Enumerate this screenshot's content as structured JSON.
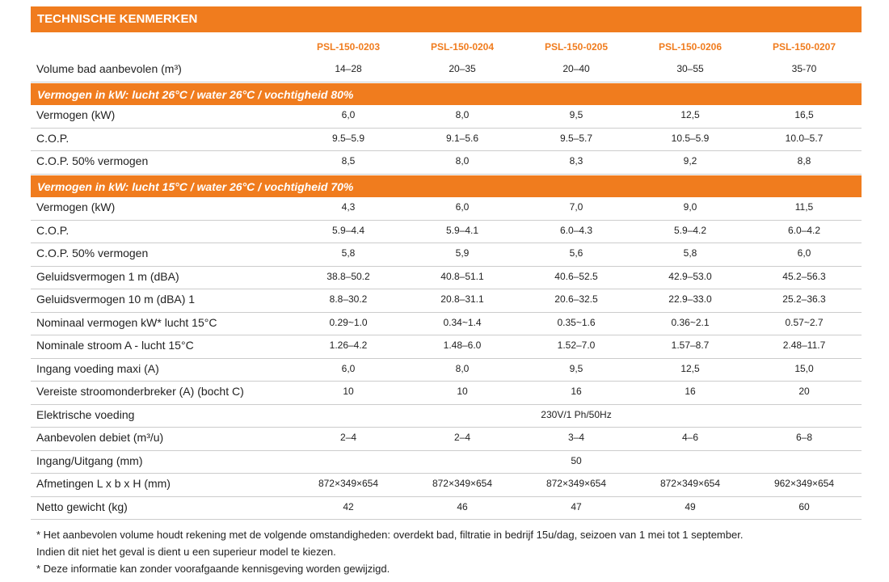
{
  "header": {
    "title": "TECHNISCHE KENMERKEN"
  },
  "table": {
    "columns": [
      "PSL-150-0203",
      "PSL-150-0204",
      "PSL-150-0205",
      "PSL-150-0206",
      "PSL-150-0207"
    ],
    "rows": [
      {
        "label": "Volume bad aanbevolen (m³)",
        "values": [
          "14–28",
          "20–35",
          "20–40",
          "30–55",
          "35-70"
        ]
      },
      {
        "section": "Vermogen in kW: lucht 26°C / water 26°C / vochtigheid 80%"
      },
      {
        "label": "Vermogen (kW)",
        "values": [
          "6,0",
          "8,0",
          "9,5",
          "12,5",
          "16,5"
        ]
      },
      {
        "label": "C.O.P.",
        "values": [
          "9.5–5.9",
          "9.1–5.6",
          "9.5–5.7",
          "10.5–5.9",
          "10.0–5.7"
        ]
      },
      {
        "label": "C.O.P. 50% vermogen",
        "values": [
          "8,5",
          "8,0",
          "8,3",
          "9,2",
          "8,8"
        ]
      },
      {
        "section": "Vermogen in kW: lucht 15°C / water 26°C / vochtigheid 70%"
      },
      {
        "label": "Vermogen (kW)",
        "values": [
          "4,3",
          "6,0",
          "7,0",
          "9,0",
          "11,5"
        ]
      },
      {
        "label": "C.O.P.",
        "values": [
          "5.9–4.4",
          "5.9–4.1",
          "6.0–4.3",
          "5.9–4.2",
          "6.0–4.2"
        ]
      },
      {
        "label": "C.O.P. 50% vermogen",
        "values": [
          "5,8",
          "5,9",
          "5,6",
          "5,8",
          "6,0"
        ]
      },
      {
        "label": "Geluidsvermogen 1 m (dBA)",
        "values": [
          "38.8–50.2",
          "40.8–51.1",
          "40.6–52.5",
          "42.9–53.0",
          "45.2–56.3"
        ]
      },
      {
        "label": "Geluidsvermogen 10 m (dBA) 1",
        "values": [
          "8.8–30.2",
          "20.8–31.1",
          "20.6–32.5",
          "22.9–33.0",
          "25.2–36.3"
        ]
      },
      {
        "label": "Nominaal vermogen kW* lucht 15°C",
        "values": [
          "0.29~1.0",
          "0.34~1.4",
          "0.35~1.6",
          "0.36~2.1",
          "0.57~2.7"
        ]
      },
      {
        "label": "Nominale stroom A - lucht 15°C",
        "values": [
          "1.26–4.2",
          "1.48–6.0",
          "1.52–7.0",
          "1.57–8.7",
          "2.48–11.7"
        ]
      },
      {
        "label": "Ingang voeding maxi (A)",
        "values": [
          "6,0",
          "8,0",
          "9,5",
          "12,5",
          "15,0"
        ]
      },
      {
        "label": "Vereiste stroomonderbreker (A) (bocht C)",
        "values": [
          "10",
          "10",
          "16",
          "16",
          "20"
        ]
      },
      {
        "label": "Elektrische voeding",
        "span": "230V/1 Ph/50Hz"
      },
      {
        "label": "Aanbevolen debiet (m³/u)",
        "values": [
          "2–4",
          "2–4",
          "3–4",
          "4–6",
          "6–8"
        ]
      },
      {
        "label": "Ingang/Uitgang (mm)",
        "span": "50"
      },
      {
        "label": "Afmetingen L x b x H (mm)",
        "values": [
          "872×349×654",
          "872×349×654",
          "872×349×654",
          "872×349×654",
          "962×349×654"
        ]
      },
      {
        "label": "Netto gewicht (kg)",
        "values": [
          "42",
          "46",
          "47",
          "49",
          "60"
        ]
      }
    ]
  },
  "notes": [
    "* Het aanbevolen volume houdt rekening met de volgende omstandigheden: overdekt bad, filtratie in bedrijf 15u/dag, seizoen van 1 mei tot 1 september.",
    "Indien dit niet het geval is dient u een superieur model te kiezen.",
    "* Deze informatie kan zonder voorafgaande kennisgeving worden gewijzigd."
  ]
}
